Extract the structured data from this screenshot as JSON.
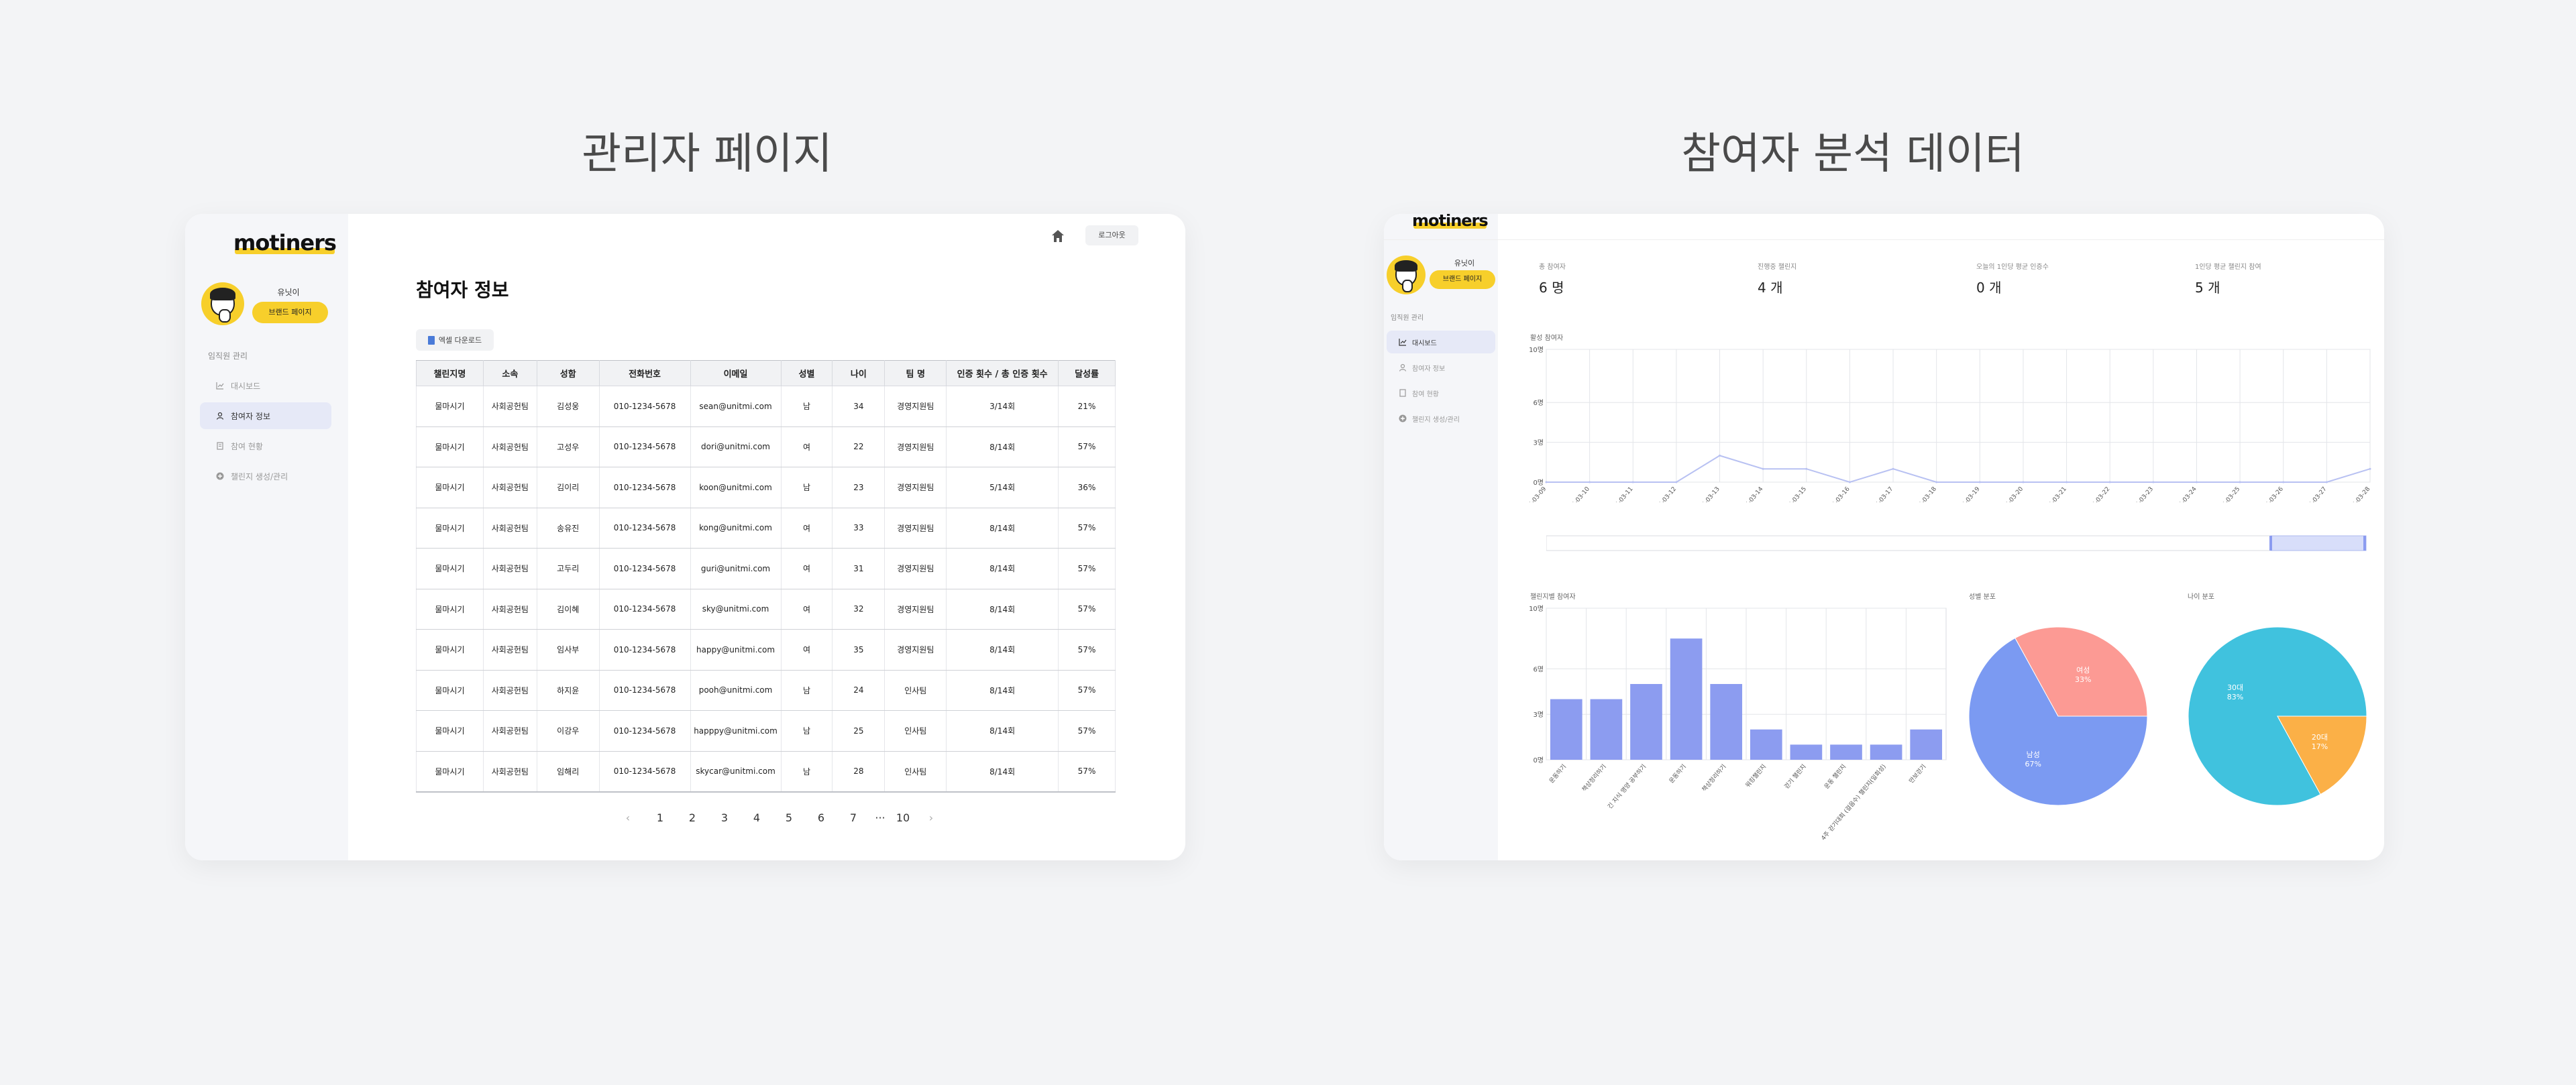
{
  "headings": {
    "left": "관리자 페이지",
    "right": "참여자 분석 데이터"
  },
  "admin": {
    "brand": "motiners",
    "user_name": "유닛이",
    "brand_button": "브랜드 페이지",
    "menu_group": "임직원 관리",
    "menu": [
      {
        "label": "대시보드",
        "icon": "chart-icon"
      },
      {
        "label": "참여자 정보",
        "icon": "user-icon"
      },
      {
        "label": "참여 현황",
        "icon": "doc-icon"
      },
      {
        "label": "챌린지 생성/관리",
        "icon": "plus-circle-icon"
      }
    ],
    "logout": "로그아웃",
    "page_title": "참여자 정보",
    "excel_button": "엑셀 다운로드",
    "columns": [
      "챌린지명",
      "소속",
      "성함",
      "전화번호",
      "이메일",
      "성별",
      "나이",
      "팀 명",
      "인증 횟수 / 총 인증 횟수",
      "달성률"
    ],
    "rows": [
      [
        "물마시기",
        "사회공헌팀",
        "김성웅",
        "010-1234-5678",
        "sean@unitmi.com",
        "남",
        "34",
        "경영지원팀",
        "3/14회",
        "21%"
      ],
      [
        "물마시기",
        "사회공헌팀",
        "고성우",
        "010-1234-5678",
        "dori@unitmi.com",
        "여",
        "22",
        "경영지원팀",
        "8/14회",
        "57%"
      ],
      [
        "물마시기",
        "사회공헌팀",
        "김이리",
        "010-1234-5678",
        "koon@unitmi.com",
        "남",
        "23",
        "경영지원팀",
        "5/14회",
        "36%"
      ],
      [
        "물마시기",
        "사회공헌팀",
        "송유진",
        "010-1234-5678",
        "kong@unitmi.com",
        "여",
        "33",
        "경영지원팀",
        "8/14회",
        "57%"
      ],
      [
        "물마시기",
        "사회공헌팀",
        "고두리",
        "010-1234-5678",
        "guri@unitmi.com",
        "여",
        "31",
        "경영지원팀",
        "8/14회",
        "57%"
      ],
      [
        "물마시기",
        "사회공헌팀",
        "김이혜",
        "010-1234-5678",
        "sky@unitmi.com",
        "여",
        "32",
        "경영지원팀",
        "8/14회",
        "57%"
      ],
      [
        "물마시기",
        "사회공헌팀",
        "임사부",
        "010-1234-5678",
        "happy@unitmi.com",
        "여",
        "35",
        "경영지원팀",
        "8/14회",
        "57%"
      ],
      [
        "물마시기",
        "사회공헌팀",
        "하지윤",
        "010-1234-5678",
        "pooh@unitmi.com",
        "남",
        "24",
        "인사팀",
        "8/14회",
        "57%"
      ],
      [
        "물마시기",
        "사회공헌팀",
        "이강우",
        "010-1234-5678",
        "happpy@unitmi.com",
        "남",
        "25",
        "인사팀",
        "8/14회",
        "57%"
      ],
      [
        "물마시기",
        "사회공헌팀",
        "임해리",
        "010-1234-5678",
        "skycar@unitmi.com",
        "남",
        "28",
        "인사팀",
        "8/14회",
        "57%"
      ]
    ],
    "pagination": {
      "prev": "‹",
      "pages": [
        "1",
        "2",
        "3",
        "4",
        "5",
        "6",
        "7",
        "···",
        "10"
      ],
      "next": "›"
    }
  },
  "analytics": {
    "brand": "motiners",
    "user_name": "유닛이",
    "brand_button": "브랜드 페이지",
    "menu_group": "임직원 관리",
    "menu": [
      {
        "label": "대시보드",
        "icon": "chart-icon"
      },
      {
        "label": "참여자 정보",
        "icon": "user-icon"
      },
      {
        "label": "참여 현황",
        "icon": "doc-icon"
      },
      {
        "label": "챌린지 생성/관리",
        "icon": "plus-circle-icon"
      }
    ],
    "stats": [
      {
        "label": "총 참여자",
        "value": "6 명"
      },
      {
        "label": "진행중 챌린지",
        "value": "4 개"
      },
      {
        "label": "오늘의 1인당 평균 인증수",
        "value": "0 개"
      },
      {
        "label": "1인당 평균 챌린지 참여",
        "value": "5 개"
      }
    ],
    "panels": {
      "daily": "활성 참여자",
      "challenge": "챌린지별 참여자",
      "gender": "성별 분포",
      "age": "나이 분포"
    }
  },
  "chart_data": [
    {
      "type": "line",
      "title": "활성 참여자",
      "x": [
        "25-03-09",
        "2025-03-10",
        "2025-03-11",
        "2025-03-12",
        "2025-03-13",
        "2025-03-14",
        "2025-03-15",
        "2025-03-16",
        "2025-03-17",
        "2025-03-18",
        "2025-03-19",
        "2025-03-20",
        "2025-03-21",
        "2025-03-22",
        "2025-03-23",
        "2025-03-24",
        "2025-03-25",
        "2025-03-26",
        "2025-03-27",
        "2025-03-28"
      ],
      "series": [
        {
          "values": [
            0,
            0,
            0,
            0,
            2,
            1,
            1,
            0,
            1,
            0,
            0,
            0,
            0,
            0,
            0,
            0,
            0,
            0,
            0,
            1
          ]
        }
      ],
      "yticks": [
        "0명",
        "3명",
        "6명",
        "10명"
      ],
      "ylim": [
        0,
        10
      ],
      "grid": true
    },
    {
      "type": "bar",
      "title": "챌린지별 참여자",
      "categories": [
        "운동하기",
        "책상정리하기",
        "긴 지식 영양 공부하기",
        "운동하기",
        "책상정리하기",
        "워킹챌린지",
        "걷기 챌린지",
        "운동 챌린지",
        "4주 걷기대회 (걸음수) 챌린지(일회성)",
        "만보걷기"
      ],
      "values": [
        4,
        4,
        5,
        8,
        5,
        2,
        1,
        1,
        1,
        2
      ],
      "yticks": [
        "0명",
        "3명",
        "6명",
        "10명"
      ],
      "ylim": [
        0,
        10
      ],
      "color": "#8c9cf0"
    },
    {
      "type": "pie",
      "title": "성별 분포",
      "slices": [
        {
          "label": "남성",
          "value": 67,
          "text": "67%",
          "color": "#7b9af2"
        },
        {
          "label": "여성",
          "value": 33,
          "text": "33%",
          "color": "#fc9a94"
        }
      ]
    },
    {
      "type": "pie",
      "title": "나이 분포",
      "slices": [
        {
          "label": "30대",
          "value": 83,
          "text": "83%",
          "color": "#40c2de"
        },
        {
          "label": "20대",
          "value": 17,
          "text": "17%",
          "color": "#fbb047"
        }
      ]
    }
  ]
}
